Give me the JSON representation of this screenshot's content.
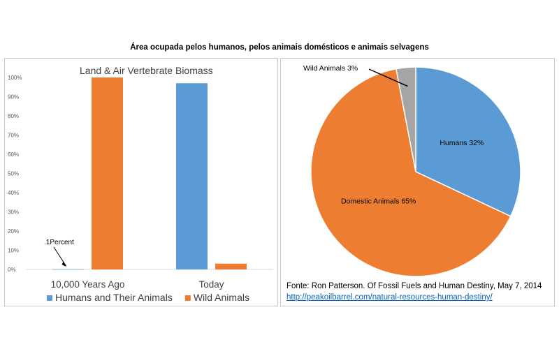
{
  "title": "Área ocupada pelos humanos, pelos animais domésticos e animais selvagens",
  "chart_data": [
    {
      "type": "bar",
      "title": "Land & Air Vertebrate  Biomass",
      "categories": [
        "10,000 Years Ago",
        "Today"
      ],
      "series": [
        {
          "name": "Humans and Their Animals",
          "values": [
            0.1,
            97
          ],
          "color": "#5b9bd5"
        },
        {
          "name": "Wild Animals",
          "values": [
            100,
            3
          ],
          "color": "#ed7d31"
        }
      ],
      "ylim": [
        0,
        100
      ],
      "yticks": [
        "0%",
        "10%",
        "20%",
        "30%",
        "40%",
        "50%",
        "60%",
        "70%",
        "80%",
        "90%",
        "100%"
      ],
      "annotation": ".1Percent",
      "legend": "bottom",
      "grid": false
    },
    {
      "type": "pie",
      "slices": [
        {
          "label": "Humans 32%",
          "value": 32,
          "color": "#5b9bd5"
        },
        {
          "label": "Domestic Animals 65%",
          "value": 65,
          "color": "#ed7d31"
        },
        {
          "label": "Wild Animals 3%",
          "value": 3,
          "color": "#a5a5a5"
        }
      ]
    }
  ],
  "source": {
    "text": "Fonte: Ron Patterson. Of Fossil Fuels and Human Destiny,  May 7, 2014",
    "link": "http://peakoilbarrel.com/natural-resources-human-destiny/"
  }
}
